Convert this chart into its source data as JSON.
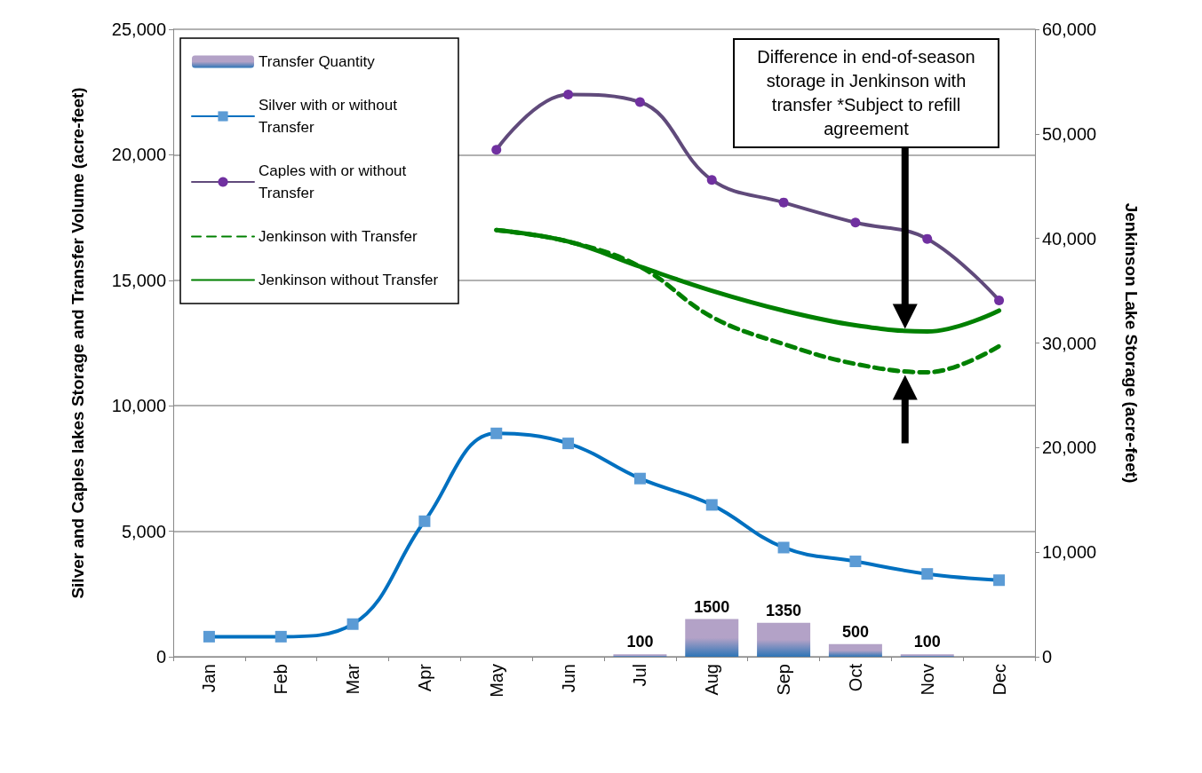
{
  "chart_data": {
    "type": "line",
    "ylabel": "Silver and Caples lakes Storage and Transfer Volume (acre-feet)",
    "y2label": "Jenkinson Lake Storage (acre-feet)",
    "categories": [
      "Jan",
      "Feb",
      "Mar",
      "Apr",
      "May",
      "Jun",
      "Jul",
      "Aug",
      "Sep",
      "Oct",
      "Nov",
      "Dec"
    ],
    "ylim": [
      0,
      25000
    ],
    "yticks": [
      0,
      {
        "value": 5000,
        "label": "5,000"
      },
      {
        "value": 10000,
        "label": "10,000"
      },
      {
        "value": 15000,
        "label": "15,000"
      },
      {
        "value": 20000,
        "label": "20,000"
      },
      {
        "value": 25000,
        "label": "25,000"
      }
    ],
    "y2lim": [
      0,
      60000
    ],
    "y2ticks": [
      0,
      {
        "value": 10000,
        "label": "10,000"
      },
      {
        "value": 20000,
        "label": "20,000"
      },
      {
        "value": 30000,
        "label": "30,000"
      },
      {
        "value": 40000,
        "label": "40,000"
      },
      {
        "value": 50000,
        "label": "50,000"
      },
      {
        "value": 60000,
        "label": "60,000"
      }
    ],
    "grid": "y",
    "legend": "top left",
    "annotations": [
      "Difference in end-of-season storage in Jenkinson with transfer *Subject to refill agreement"
    ],
    "series": [
      {
        "type": "bar",
        "name": "Transfer Quantity",
        "color": "#b3a2c7",
        "values": [
          null,
          null,
          null,
          null,
          null,
          null,
          100,
          1500,
          1350,
          500,
          100,
          null
        ],
        "data_labels": true
      },
      {
        "name": "Silver with or without Transfer",
        "color": "#0070c0",
        "marker": "square",
        "values": [
          800,
          800,
          1300,
          5400,
          8900,
          8500,
          7100,
          6050,
          4350,
          3800,
          3300,
          3050
        ]
      },
      {
        "name": "Caples with or without Transfer",
        "color": "#604a7b",
        "marker": "circle",
        "values": [
          null,
          null,
          null,
          null,
          20200,
          22400,
          22100,
          19000,
          18100,
          17300,
          16650,
          14200
        ]
      },
      {
        "name": "Jenkinson with Transfer",
        "color": "#008000",
        "axis": "y2",
        "line_style": "dashed",
        "marker": "none",
        "values": [
          null,
          null,
          null,
          null,
          40800,
          39700,
          37300,
          32500,
          29900,
          28000,
          27200,
          29700
        ]
      },
      {
        "name": "Jenkinson without Transfer",
        "color": "#008000",
        "axis": "y2",
        "line_style": "solid",
        "marker": "none",
        "values": [
          null,
          null,
          null,
          null,
          40800,
          39700,
          37300,
          35000,
          33100,
          31700,
          31100,
          33100
        ]
      }
    ]
  }
}
